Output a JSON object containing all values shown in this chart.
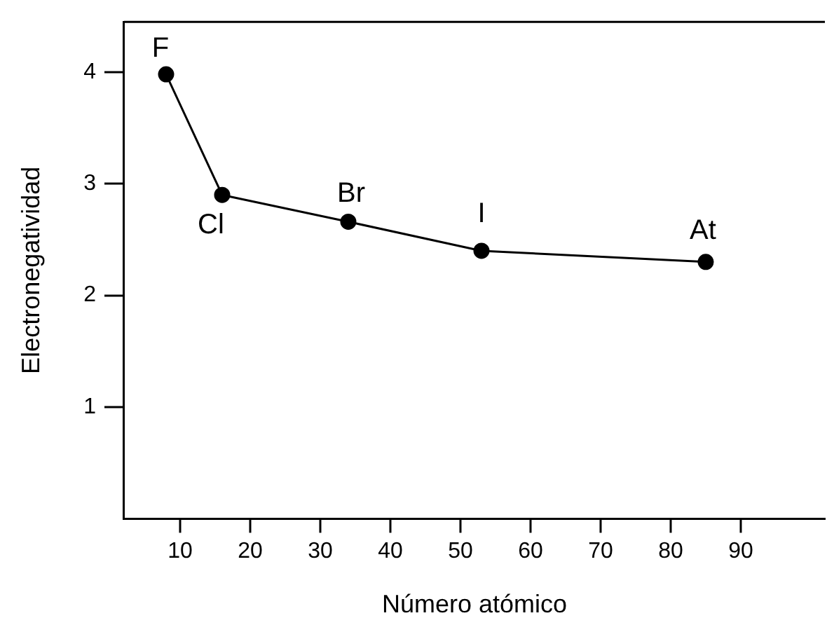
{
  "chart_data": {
    "type": "line",
    "xlabel": "Número atómico",
    "ylabel": "Electronegatividad",
    "x": [
      8,
      16,
      34,
      53,
      85
    ],
    "series": [
      {
        "color": "#000000",
        "values": [
          3.98,
          2.9,
          2.66,
          2.4,
          2.3
        ]
      }
    ],
    "xlim": [
      2,
      102
    ],
    "xticks": [
      10,
      20,
      30,
      40,
      50,
      60,
      70,
      80,
      90
    ],
    "ylim": [
      0,
      4.45
    ],
    "yticks": [
      1,
      2,
      3,
      4
    ],
    "grid": false,
    "legend": false,
    "marker": "circle",
    "line_style": "solid",
    "annotations": [
      {
        "text": "F",
        "x": 8,
        "y": 3.98
      },
      {
        "text": "Cl",
        "x": 16,
        "y": 2.9
      },
      {
        "text": "Br",
        "x": 34,
        "y": 2.66
      },
      {
        "text": "I",
        "x": 53,
        "y": 2.4
      },
      {
        "text": "At",
        "x": 85,
        "y": 2.3
      }
    ]
  }
}
